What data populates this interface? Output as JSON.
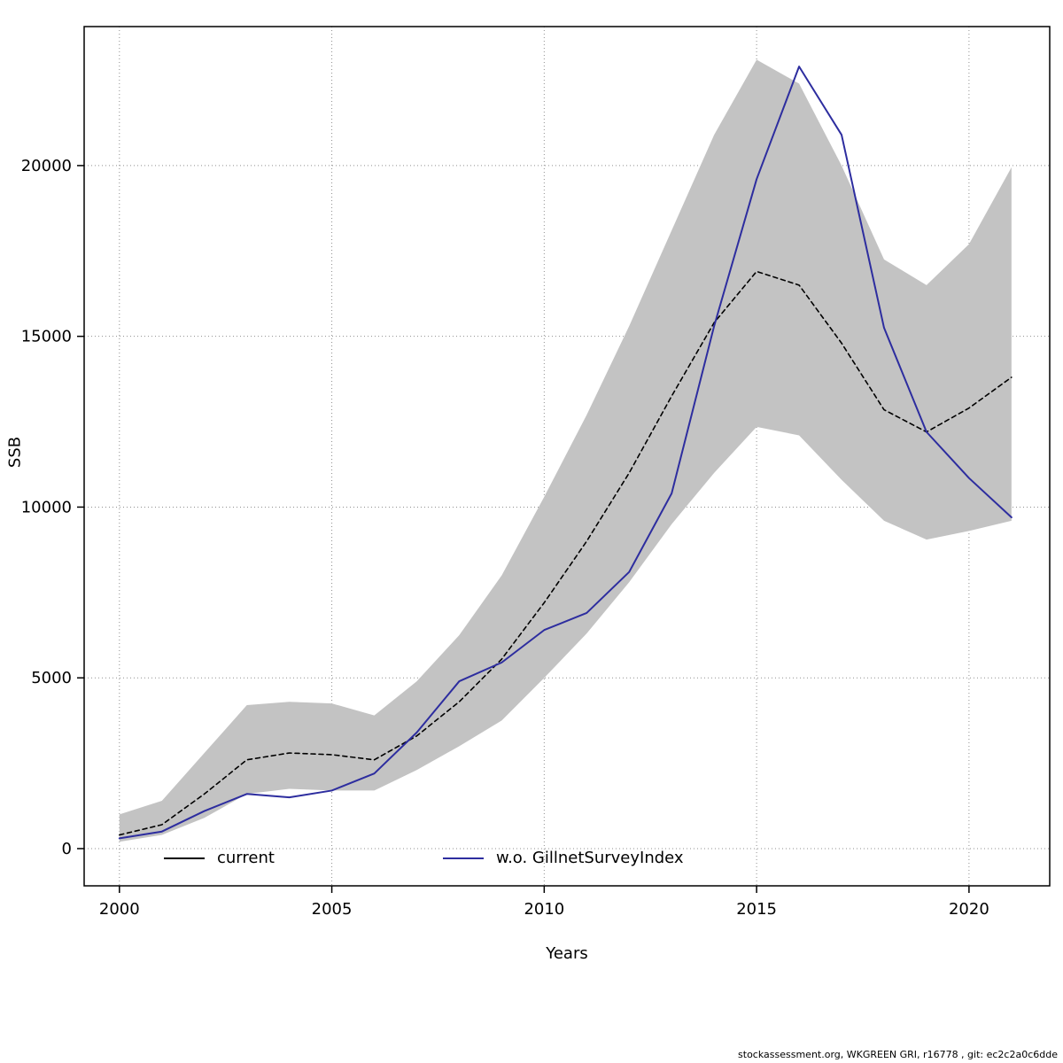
{
  "axes": {
    "x_label": "Years",
    "y_label": "SSB"
  },
  "legend": {
    "items": [
      {
        "label": "current",
        "color": "#000000"
      },
      {
        "label": "w.o. GillnetSurveyIndex",
        "color": "#2d2d9f"
      }
    ]
  },
  "footer": {
    "text": "stockassessment.org, WKGREEN GRI, r16778 , git: ec2c2a0c6dde"
  },
  "chart_data": {
    "type": "line",
    "title": "",
    "xlabel": "Years",
    "ylabel": "SSB",
    "x": [
      2000,
      2001,
      2002,
      2003,
      2004,
      2005,
      2006,
      2007,
      2008,
      2009,
      2010,
      2011,
      2012,
      2013,
      2014,
      2015,
      2016,
      2017,
      2018,
      2019,
      2020,
      2021
    ],
    "series": [
      {
        "name": "current",
        "color": "#000000",
        "style": "dashed",
        "values": [
          400,
          700,
          1600,
          2600,
          2800,
          2750,
          2600,
          3300,
          4300,
          5550,
          7200,
          9000,
          11000,
          13250,
          15400,
          16900,
          16500,
          14800,
          12850,
          12200,
          12900,
          13800
        ]
      },
      {
        "name": "w.o. GillnetSurveyIndex",
        "color": "#2d2d9f",
        "style": "solid",
        "values": [
          300,
          500,
          1100,
          1600,
          1500,
          1700,
          2200,
          3400,
          4900,
          5450,
          6400,
          6900,
          8100,
          10400,
          15300,
          19600,
          22900,
          20900,
          15250,
          12200,
          10850,
          9700
        ]
      }
    ],
    "band": {
      "series": "current",
      "color": "#c3c3c3",
      "lower": [
        200,
        400,
        900,
        1600,
        1750,
        1700,
        1700,
        2300,
        3000,
        3750,
        5000,
        6300,
        7800,
        9500,
        11000,
        12350,
        12100,
        10800,
        9600,
        9050,
        9300,
        9600
      ],
      "upper": [
        1000,
        1400,
        2800,
        4200,
        4300,
        4250,
        3900,
        4900,
        6250,
        8000,
        10300,
        12700,
        15300,
        18100,
        20900,
        23100,
        22400,
        20000,
        17250,
        16500,
        17700,
        19950
      ]
    },
    "x_ticks": [
      2000,
      2005,
      2010,
      2015,
      2020
    ],
    "y_ticks": [
      0,
      5000,
      10000,
      15000,
      20000
    ],
    "xlim": [
      1999.17,
      2021.9
    ],
    "ylim": [
      -1090,
      24070
    ],
    "grid": true,
    "legend_position": "bottom-inside"
  }
}
